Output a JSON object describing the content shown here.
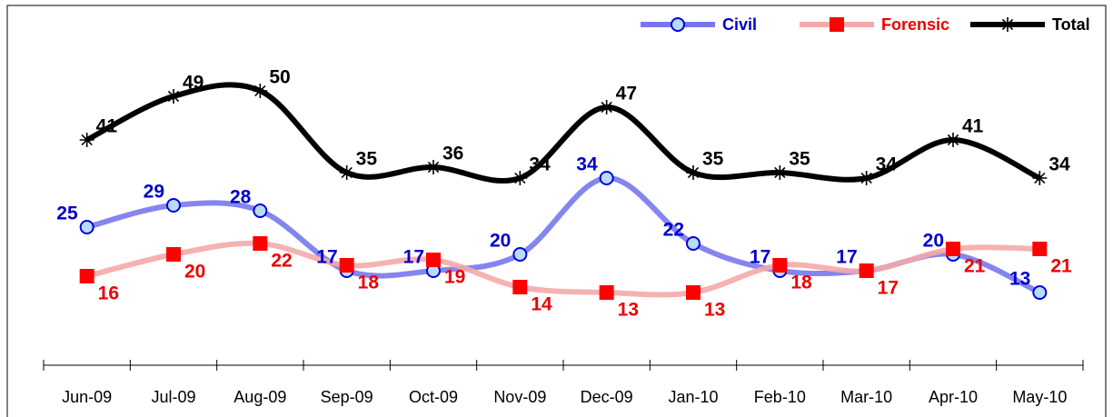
{
  "chart_data": {
    "type": "line",
    "categories": [
      "Jun-09",
      "Jul-09",
      "Aug-09",
      "Sep-09",
      "Oct-09",
      "Nov-09",
      "Dec-09",
      "Jan-10",
      "Feb-10",
      "Mar-10",
      "Apr-10",
      "May-10"
    ],
    "series": [
      {
        "name": "Civil",
        "color": "#7878ee",
        "values": [
          25,
          29,
          28,
          17,
          17,
          20,
          34,
          22,
          17,
          17,
          20,
          13
        ]
      },
      {
        "name": "Forensic",
        "color": "#f5a8a8",
        "values": [
          16,
          20,
          22,
          18,
          19,
          14,
          13,
          13,
          18,
          17,
          21,
          21
        ]
      },
      {
        "name": "Total",
        "color": "#000000",
        "values": [
          41,
          49,
          50,
          35,
          36,
          34,
          47,
          35,
          35,
          34,
          41,
          34
        ]
      }
    ],
    "ylim": [
      0,
      60
    ],
    "smooth": true,
    "legend": "top-right"
  }
}
